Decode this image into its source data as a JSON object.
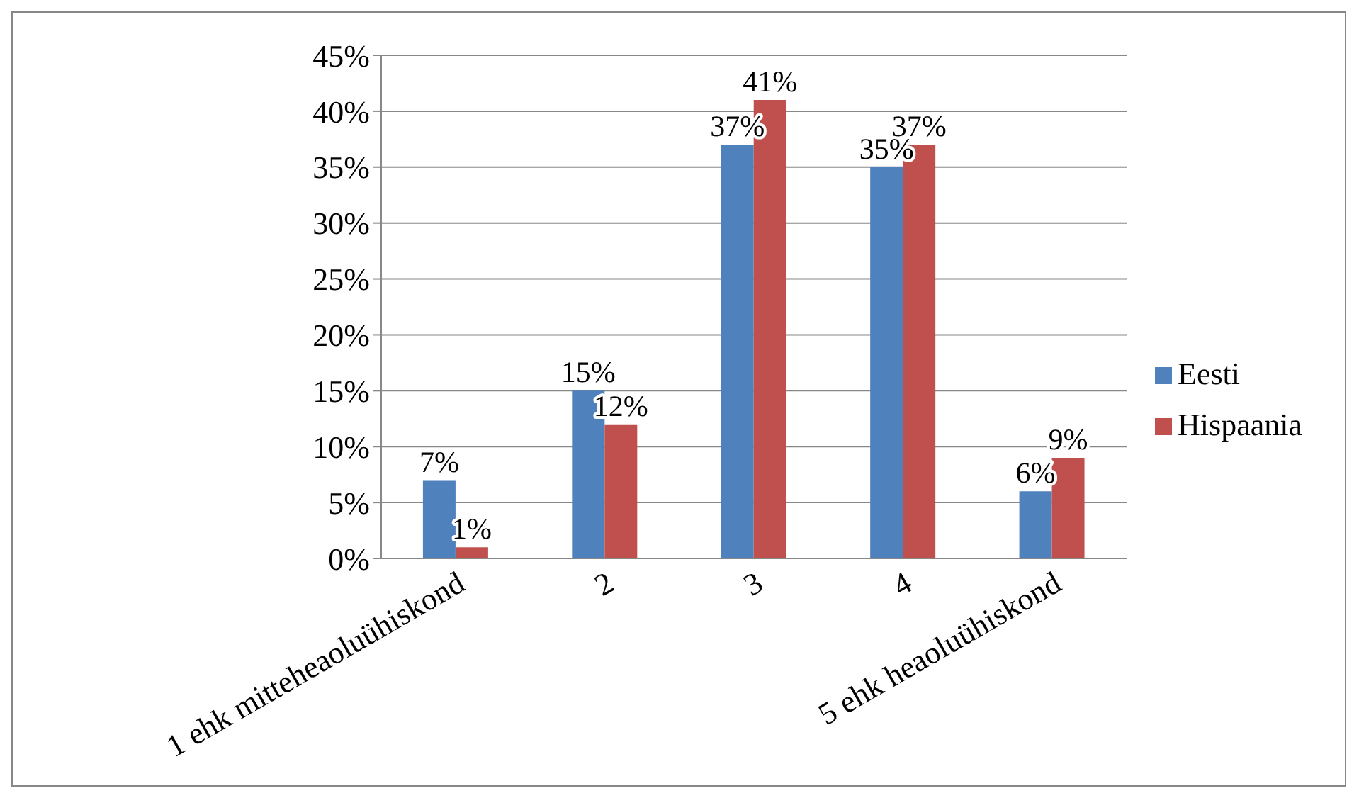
{
  "chart_data": {
    "type": "bar",
    "categories": [
      "1 ehk mitteheaoluühiskond",
      "2",
      "3",
      "4",
      "5 ehk heaoluühiskond"
    ],
    "series": [
      {
        "name": "Eesti",
        "color": "#4f81bd",
        "values": [
          7,
          15,
          37,
          35,
          6
        ],
        "value_labels": [
          "7%",
          "15%",
          "37%",
          "35%",
          "6%"
        ]
      },
      {
        "name": "Hispaania",
        "color": "#c0504d",
        "values": [
          1,
          12,
          41,
          37,
          9
        ],
        "value_labels": [
          "1%",
          "12%",
          "41%",
          "37%",
          "9%"
        ]
      }
    ],
    "ylim": [
      0,
      45
    ],
    "yticks": [
      {
        "value": 0,
        "label": "0%"
      },
      {
        "value": 5,
        "label": "5%"
      },
      {
        "value": 10,
        "label": "10%"
      },
      {
        "value": 15,
        "label": "15%"
      },
      {
        "value": 20,
        "label": "20%"
      },
      {
        "value": 25,
        "label": "25%"
      },
      {
        "value": 30,
        "label": "30%"
      },
      {
        "value": 35,
        "label": "35%"
      },
      {
        "value": 40,
        "label": "40%"
      },
      {
        "value": 45,
        "label": "45%"
      }
    ],
    "grid": "y",
    "legend": "right"
  }
}
